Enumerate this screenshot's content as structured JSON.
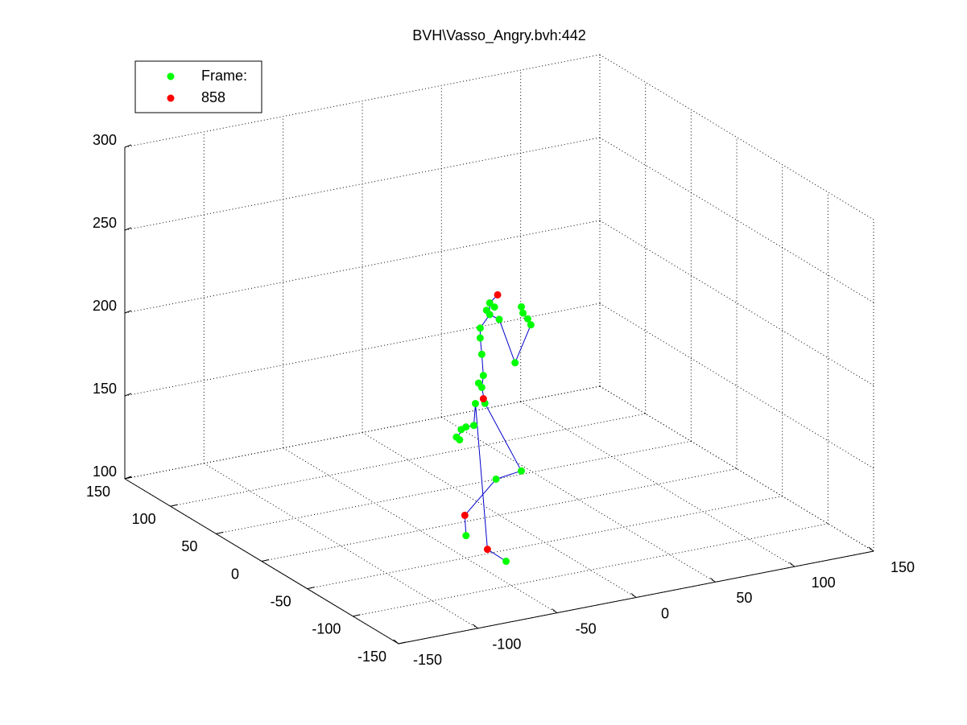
{
  "chart_data": {
    "type": "scatter3d",
    "title": "BVH\\Vasso_Angry.bvh:442",
    "xlim": [
      -150,
      150
    ],
    "xticks": [
      -150,
      -100,
      -50,
      0,
      50,
      100,
      150
    ],
    "ylim": [
      -150,
      150
    ],
    "yticks": [
      -150,
      -100,
      -50,
      0,
      50,
      100,
      150
    ],
    "zlim": [
      100,
      300
    ],
    "zticks": [
      100,
      150,
      200,
      250,
      300
    ],
    "grid": true,
    "legend": "top-left",
    "series": [
      {
        "name": "Frame:",
        "color": "#00ff00",
        "mode": "markers",
        "x": [
          -6,
          -3,
          -8,
          -6,
          -12,
          -12,
          -11,
          -10,
          -13,
          -11,
          -15,
          -9,
          0,
          10,
          20,
          18,
          15,
          14,
          -16,
          -21,
          -24,
          -27,
          -25,
          14,
          -2,
          -44,
          -36
        ],
        "y": [
          0,
          0,
          0,
          0,
          0,
          0,
          0,
          0,
          0,
          0,
          0,
          0,
          0,
          0,
          0,
          0,
          0,
          0,
          0,
          0,
          0,
          0,
          0,
          0,
          0,
          -40,
          -70
        ],
        "z": [
          229,
          226,
          225,
          222,
          215,
          209,
          199,
          186,
          182,
          179,
          170,
          169,
          218,
          190,
          211,
          215,
          219,
          223,
          157,
          157,
          156,
          152,
          150,
          124,
          122,
          109,
          102
        ]
      },
      {
        "name": "858",
        "color": "#ff0000",
        "mode": "markers",
        "x": [
          -1,
          -10,
          -39,
          -42
        ],
        "y": [
          0,
          0,
          -30,
          -60
        ],
        "z": [
          233,
          172,
          117,
          107
        ]
      },
      {
        "color": "#0000cc",
        "mode": "lines",
        "x": [
          -9,
          -11,
          -10,
          -11,
          -12,
          -12,
          -6,
          -6,
          -1,
          null,
          -6,
          0,
          10,
          20,
          15,
          null,
          -15,
          -16,
          -21,
          -27,
          null,
          -9,
          14,
          -2,
          -39,
          -44,
          null,
          -15,
          -42,
          -36
        ],
        "y": [
          0,
          0,
          0,
          0,
          0,
          0,
          0,
          0,
          0,
          null,
          0,
          0,
          0,
          0,
          0,
          null,
          0,
          0,
          0,
          0,
          null,
          0,
          0,
          0,
          -30,
          -40,
          null,
          0,
          -60,
          -70
        ],
        "z": [
          169,
          179,
          186,
          199,
          209,
          215,
          222,
          229,
          233,
          null,
          222,
          218,
          190,
          211,
          219,
          null,
          170,
          157,
          157,
          152,
          null,
          169,
          124,
          122,
          117,
          109,
          null,
          170,
          107,
          102
        ]
      }
    ]
  }
}
